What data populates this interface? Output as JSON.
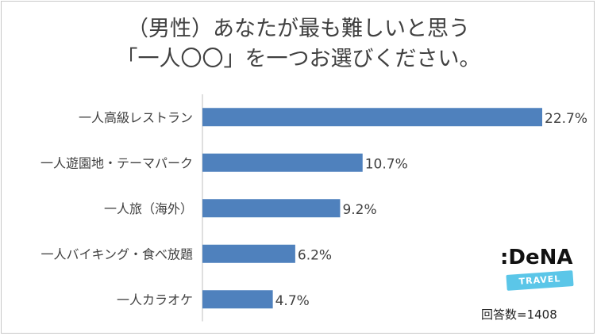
{
  "chart_data": {
    "type": "bar",
    "orientation": "horizontal",
    "title_lines": [
      "（男性）あなたが最も難しいと思う",
      "「一人〇〇」を一つお選びください。"
    ],
    "categories": [
      "一人高級レストラン",
      "一人遊園地・テーマパーク",
      "一人旅（海外）",
      "一人バイキング・食べ放題",
      "一人カラオケ"
    ],
    "values": [
      22.7,
      10.7,
      9.2,
      6.2,
      4.7
    ],
    "value_labels": [
      "22.7%",
      "10.7%",
      "9.2%",
      "6.2%",
      "4.7%"
    ],
    "unit": "%",
    "xlim": [
      0,
      22.7
    ],
    "grid": false,
    "legend": "none",
    "bar_color": "#4f81bd"
  },
  "logo": {
    "name": "dena-travel-logo",
    "text": ":DeNA",
    "band_text": "TRAVEL"
  },
  "footnote": "回答数=1408"
}
